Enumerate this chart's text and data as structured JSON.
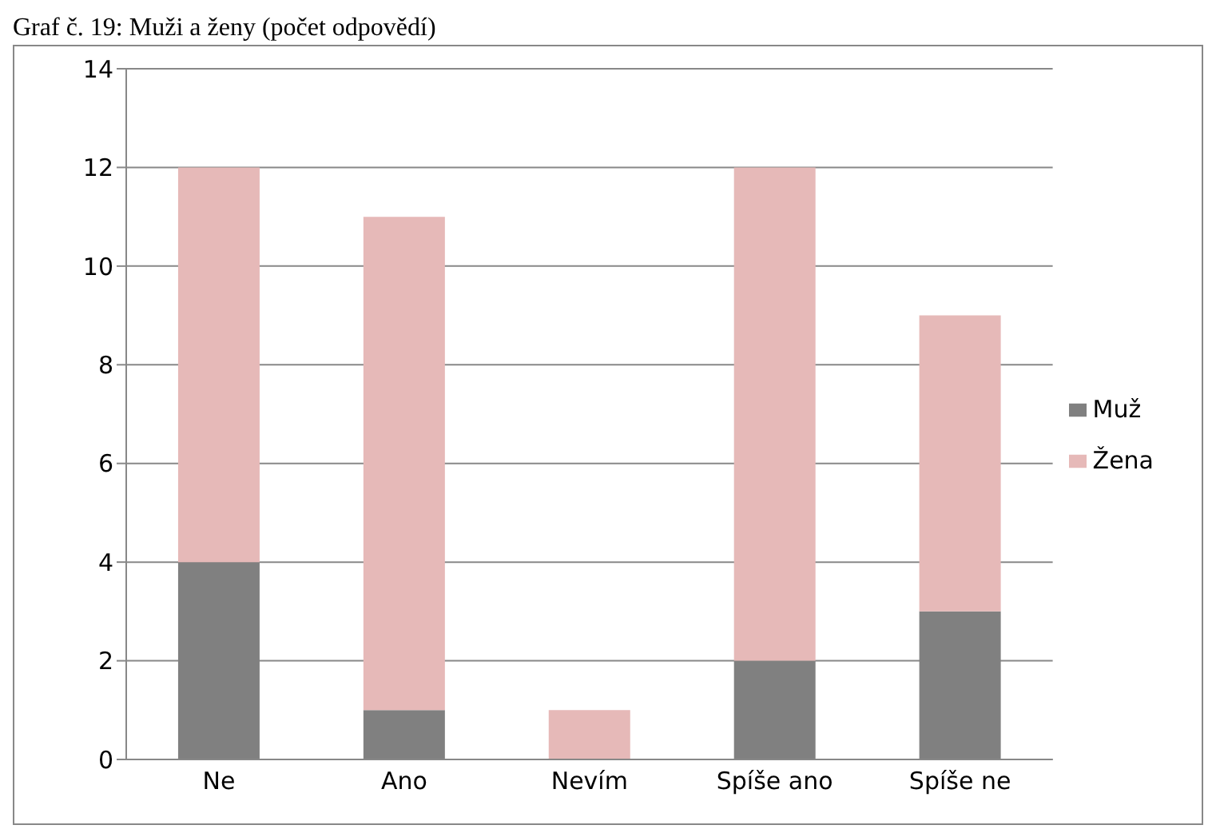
{
  "chart_data": {
    "type": "bar",
    "title": "Graf č. 19: Muži a ženy (počet odpovědí)",
    "categories": [
      "Ne",
      "Ano",
      "Nevím",
      "Spíše ano",
      "Spíše ne"
    ],
    "stacked": true,
    "series": [
      {
        "name": "Muž",
        "color": "#808080",
        "values": [
          4,
          1,
          0,
          2,
          3
        ]
      },
      {
        "name": "Žena",
        "color": "#e6b9b8",
        "values": [
          8,
          10,
          1,
          10,
          6
        ]
      }
    ],
    "ylim": [
      0,
      14
    ],
    "yticks": [
      0,
      2,
      4,
      6,
      8,
      10,
      12,
      14
    ],
    "grid": "y",
    "legend": "right"
  }
}
